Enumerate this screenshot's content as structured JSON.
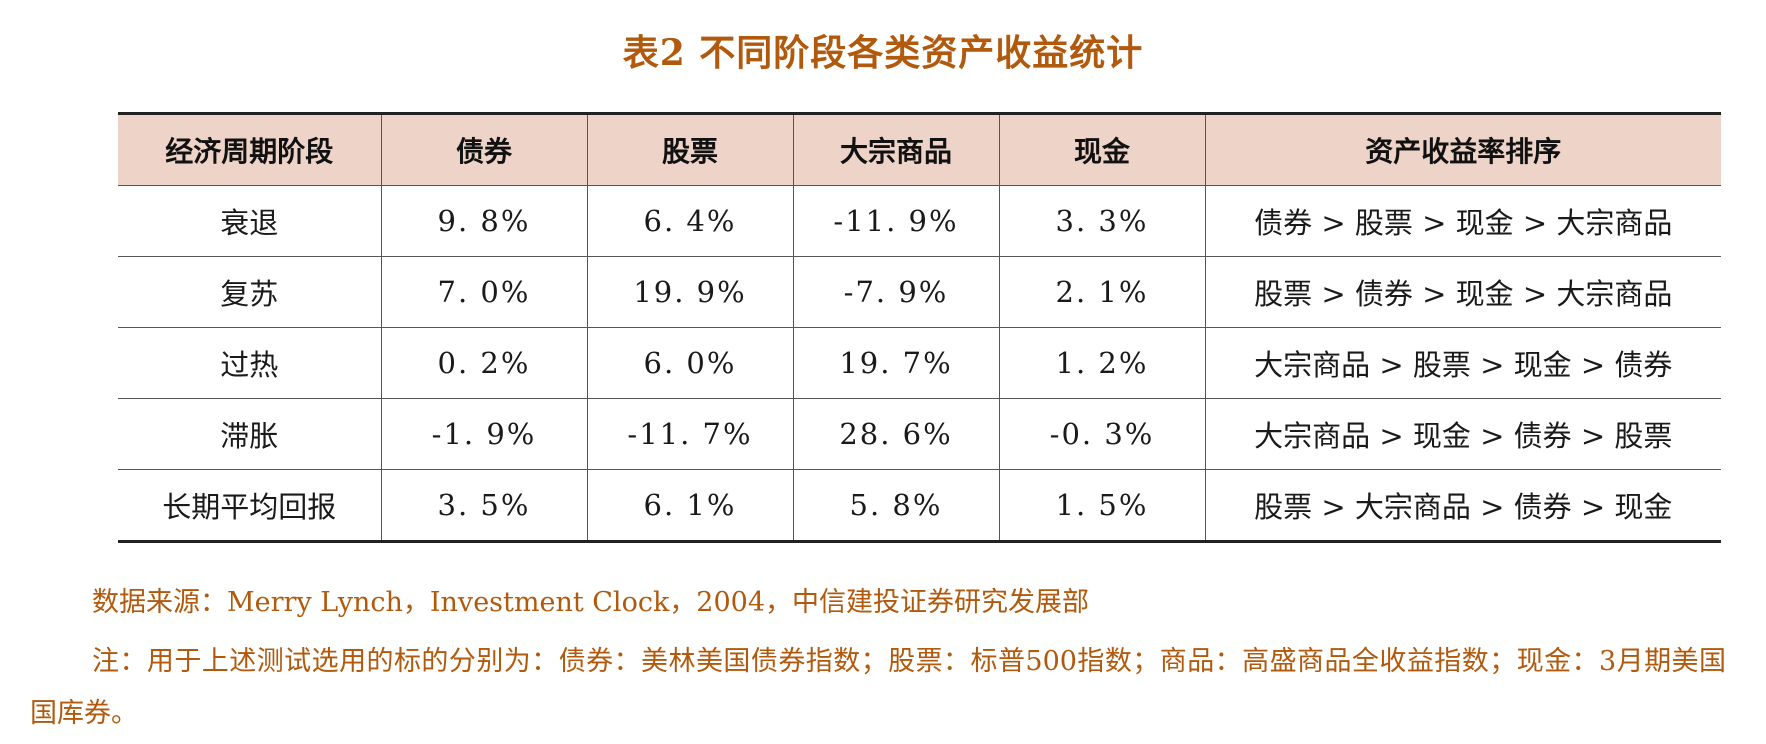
{
  "title": "表2 不同阶段各类资产收益统计",
  "table": {
    "headers": [
      "经济周期阶段",
      "债券",
      "股票",
      "大宗商品",
      "现金",
      "资产收益率排序"
    ],
    "rows": [
      [
        "衰退",
        "9. 8%",
        "6. 4%",
        "-11. 9%",
        "3. 3%",
        "债券 > 股票 > 现金 > 大宗商品"
      ],
      [
        "复苏",
        "7. 0%",
        "19. 9%",
        "-7. 9%",
        "2. 1%",
        "股票 > 债券 > 现金 > 大宗商品"
      ],
      [
        "过热",
        "0. 2%",
        "6. 0%",
        "19. 7%",
        "1. 2%",
        "大宗商品 > 股票 > 现金 > 债券"
      ],
      [
        "滞胀",
        "-1. 9%",
        "-11. 7%",
        "28. 6%",
        "-0. 3%",
        "大宗商品 > 现金 > 债券 > 股票"
      ],
      [
        "长期平均回报",
        "3. 5%",
        "6. 1%",
        "5. 8%",
        "1. 5%",
        "股票 > 大宗商品 > 债券 > 现金"
      ]
    ]
  },
  "source": "数据来源：Merry Lynch，Investment Clock，2004，中信建投证券研究发展部",
  "note": "注：用于上述测试选用的标的分别为：债券：美林美国债券指数；股票：标普500指数；商品：高盛商品全收益指数；现金：3月期美国国库券。",
  "colors": {
    "accent_text": "#b1590c",
    "header_bg": "#eed4c8"
  }
}
